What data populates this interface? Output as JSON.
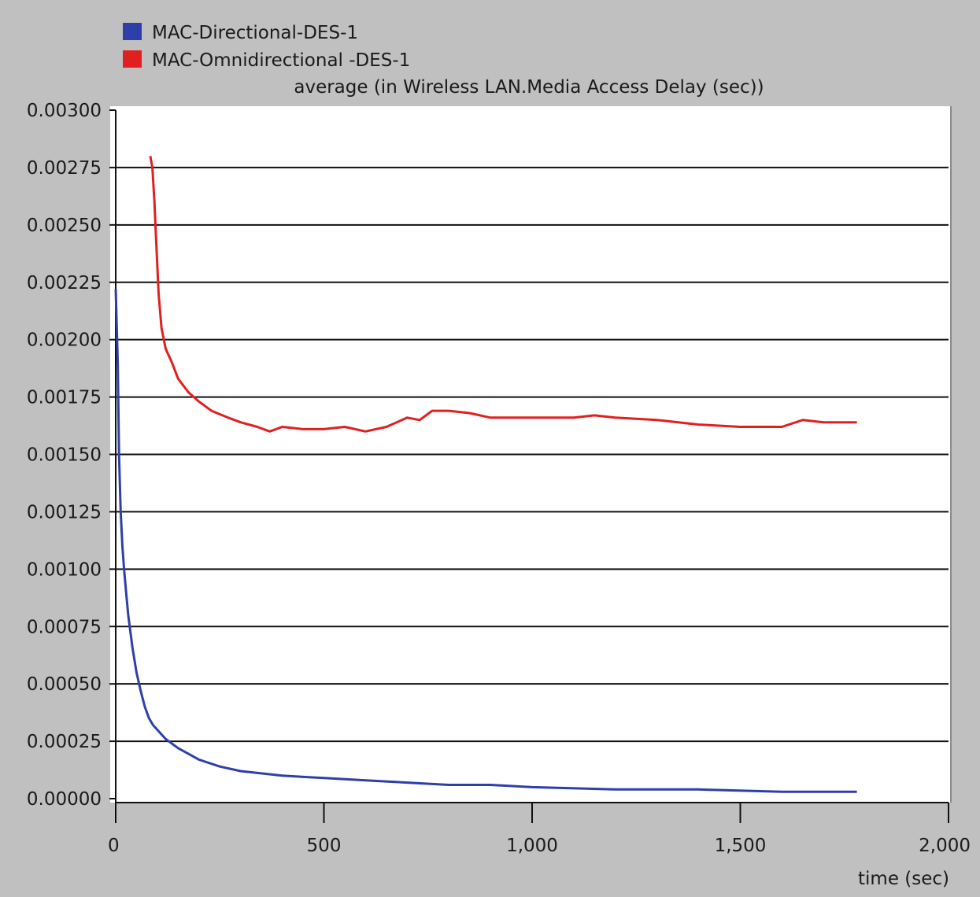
{
  "chart_data": {
    "type": "line",
    "title": "average (in Wireless LAN.Media Access Delay (sec))",
    "xlabel": "time (sec)",
    "ylabel": "",
    "xlim": [
      0,
      2000
    ],
    "ylim": [
      0,
      0.003
    ],
    "x_ticks": [
      0,
      500,
      1000,
      1500,
      2000
    ],
    "x_tick_labels": [
      "0",
      "500",
      "1,000",
      "1,500",
      "2,000"
    ],
    "y_ticks": [
      0,
      0.00025,
      0.0005,
      0.00075,
      0.001,
      0.00125,
      0.0015,
      0.00175,
      0.002,
      0.00225,
      0.0025,
      0.00275,
      0.003
    ],
    "y_tick_labels": [
      "0.00000",
      "0.00025",
      "0.00050",
      "0.00075",
      "0.00100",
      "0.00125",
      "0.00150",
      "0.00175",
      "0.00200",
      "0.00225",
      "0.00250",
      "0.00275",
      "0.00300"
    ],
    "grid": true,
    "legend_position": "top-left",
    "series": [
      {
        "name": "MAC-Directional-DES-1",
        "color": "#2e3fa8",
        "x": [
          0,
          5,
          8,
          12,
          16,
          20,
          25,
          30,
          40,
          50,
          60,
          70,
          80,
          90,
          100,
          120,
          150,
          200,
          250,
          300,
          350,
          400,
          500,
          600,
          700,
          800,
          900,
          1000,
          1200,
          1400,
          1600,
          1780
        ],
        "y": [
          0.00222,
          0.0019,
          0.0015,
          0.00125,
          0.0011,
          0.001,
          0.0009,
          0.0008,
          0.00066,
          0.00055,
          0.00047,
          0.0004,
          0.00035,
          0.00032,
          0.0003,
          0.00026,
          0.00022,
          0.00017,
          0.00014,
          0.00012,
          0.00011,
          0.0001,
          9e-05,
          8e-05,
          7e-05,
          6e-05,
          6e-05,
          5e-05,
          4e-05,
          4e-05,
          3e-05,
          3e-05
        ]
      },
      {
        "name": "MAC-Omnidirectional -DES-1",
        "color": "#e02020",
        "x": [
          83,
          88,
          93,
          98,
          103,
          110,
          120,
          135,
          150,
          175,
          200,
          230,
          270,
          300,
          340,
          370,
          400,
          450,
          500,
          550,
          600,
          650,
          700,
          730,
          760,
          800,
          850,
          900,
          1000,
          1100,
          1150,
          1200,
          1300,
          1400,
          1500,
          1600,
          1650,
          1700,
          1780
        ],
        "y": [
          0.0028,
          0.00275,
          0.0026,
          0.0024,
          0.0022,
          0.00205,
          0.00196,
          0.0019,
          0.00183,
          0.00177,
          0.00173,
          0.00169,
          0.00166,
          0.00164,
          0.00162,
          0.0016,
          0.00162,
          0.00161,
          0.00161,
          0.00162,
          0.0016,
          0.00162,
          0.00166,
          0.00165,
          0.00169,
          0.00169,
          0.00168,
          0.00166,
          0.00166,
          0.00166,
          0.00167,
          0.00166,
          0.00165,
          0.00163,
          0.00162,
          0.00162,
          0.00165,
          0.00164,
          0.00164
        ]
      }
    ]
  }
}
